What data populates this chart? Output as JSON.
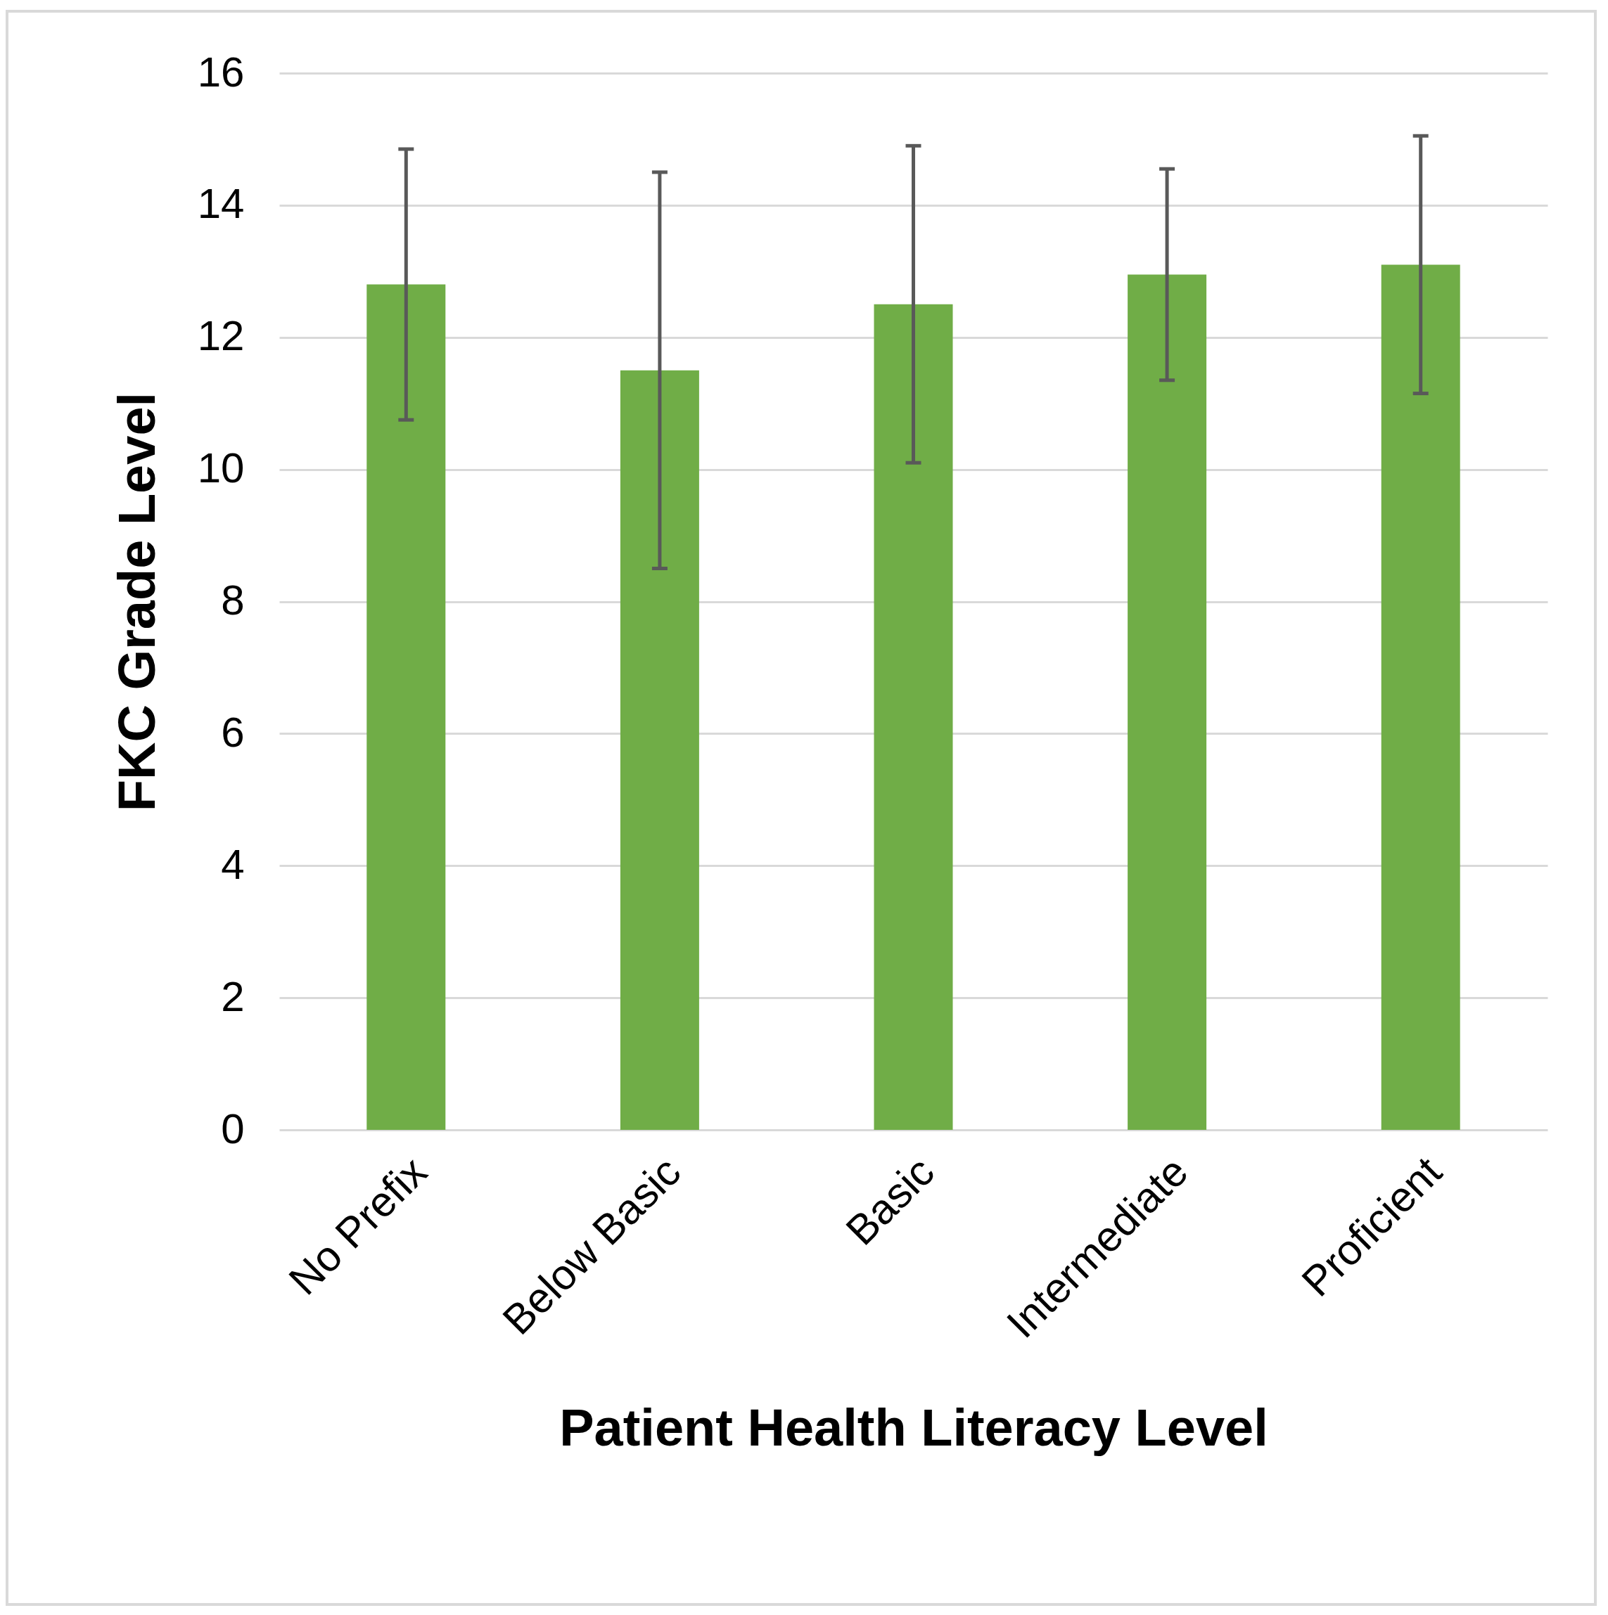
{
  "chart_data": {
    "type": "bar",
    "xlabel": "Patient Health Literacy Level",
    "ylabel": "FKC Grade Level",
    "categories": [
      "No Prefix",
      "Below Basic",
      "Basic",
      "Intermediate",
      "Proficient"
    ],
    "values": [
      12.8,
      11.5,
      12.5,
      12.95,
      13.1
    ],
    "errors": [
      2.05,
      3.0,
      2.4,
      1.6,
      1.95
    ],
    "color": "#70ad47",
    "ylim": [
      0,
      16
    ],
    "yticks": [
      0,
      2,
      4,
      6,
      8,
      10,
      12,
      14,
      16
    ],
    "grid": "y"
  }
}
